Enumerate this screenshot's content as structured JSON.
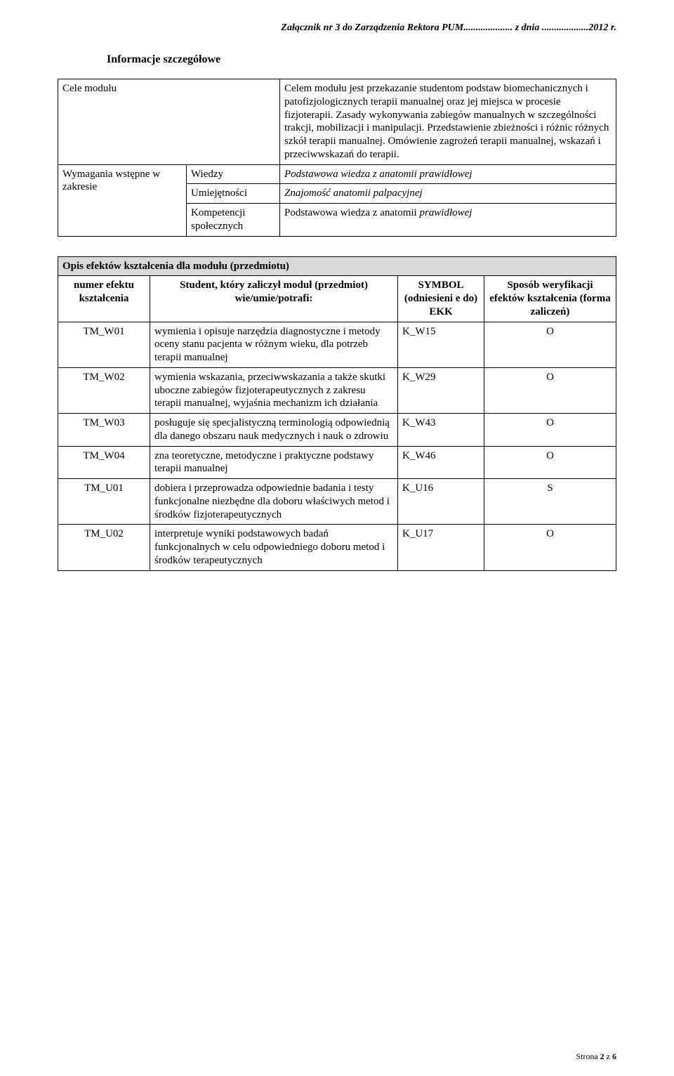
{
  "header": "Załącznik nr 3 do Zarządzenia Rektora PUM.................... z dnia ...................2012 r.",
  "section_title": "Informacje szczegółowe",
  "t1": {
    "cele_label": "Cele  modułu",
    "cele_text": "Celem modułu jest przekazanie studentom podstaw biomechanicznych i patofizjologicznych terapii manualnej oraz jej miejsca w procesie fizjoterapii. Zasady wykonywania zabiegów manualnych w szczególności trakcji, mobilizacji i manipulacji. Przedstawienie zbieżności i różnic różnych szkół terapii manualnej. Omówienie zagrożeń terapii manualnej, wskazań i przeciwwskazań do terapii.",
    "req_label": "Wymagania wstępne w zakresie",
    "r1a": "Wiedzy",
    "r1b": "Podstawowa wiedza z anatomii prawidłowej",
    "r2a": "Umiejętności",
    "r2b": "Znajomość anatomii palpacyjnej",
    "r3a": "Kompetencji społecznych",
    "r3b_pre": "Podstawowa wiedza z anatomii ",
    "r3b_it": "prawidłowej"
  },
  "t2": {
    "title": "Opis efektów kształcenia dla modułu (przedmiotu)",
    "h1": "numer efektu kształcenia",
    "h2": "Student, który zaliczył moduł (przedmiot) wie/umie/potrafi:",
    "h3": "SYMBOL (odniesieni e do) EKK",
    "h4": "Sposób weryfikacji efektów kształcenia (forma zaliczeń)",
    "rows": [
      {
        "id": "TM_W01",
        "desc": "wymienia i opisuje narzędzia diagnostyczne i metody oceny stanu pacjenta w różnym wieku, dla potrzeb terapii manualnej",
        "sym": "K_W15",
        "form": "O"
      },
      {
        "id": "TM_W02",
        "desc": "wymienia wskazania, przeciwwskazania a także skutki uboczne zabiegów fizjoterapeutycznych z zakresu terapii manualnej, wyjaśnia mechanizm ich działania",
        "sym": "K_W29",
        "form": "O"
      },
      {
        "id": "TM_W03",
        "desc": "posługuje się specjalistyczną terminologią odpowiednią dla danego obszaru nauk medycznych i nauk o zdrowiu",
        "sym": "K_W43",
        "form": "O"
      },
      {
        "id": "TM_W04",
        "desc": "zna teoretyczne, metodyczne i praktyczne podstawy terapii manualnej",
        "sym": "K_W46",
        "form": "O"
      },
      {
        "id": "TM_U01",
        "desc": "dobiera i przeprowadza odpowiednie badania i testy funkcjonalne niezbędne dla doboru właściwych metod i środków fizjoterapeutycznych",
        "sym": "K_U16",
        "form": "S"
      },
      {
        "id": "TM_U02",
        "desc": "interpretuje wyniki podstawowych badań funkcjonalnych w celu odpowiedniego doboru metod i środków terapeutycznych",
        "sym": "K_U17",
        "form": "O"
      }
    ]
  },
  "footer_pre": "Strona ",
  "footer_pg": "2",
  "footer_mid": " z ",
  "footer_total": "6"
}
